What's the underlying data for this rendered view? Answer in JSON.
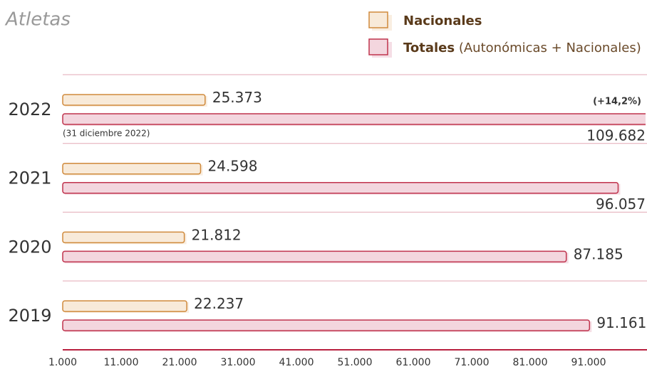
{
  "chart_data": {
    "type": "barh",
    "title": "Atletas",
    "categories": [
      "2022",
      "2021",
      "2020",
      "2019"
    ],
    "series": [
      {
        "name": "Nacionales",
        "color": "#d08a3c",
        "fill": "#f8ead9",
        "values": [
          25373,
          24598,
          21812,
          22237
        ],
        "value_labels": [
          "25.373",
          "24.598",
          "21.812",
          "22.237"
        ]
      },
      {
        "name": "Totales",
        "name_detail": "(Autonómicas + Nacionales)",
        "color": "#c0334d",
        "fill": "#f3d6de",
        "values": [
          109682,
          96057,
          87185,
          91161
        ],
        "value_labels": [
          "109.682",
          "96.057",
          "87.185",
          "91.161"
        ]
      }
    ],
    "annotations": [
      "(+14,2%)",
      "(31 diciembre 2022)"
    ],
    "xlim": [
      1000,
      101000
    ],
    "xticks": [
      {
        "value": 1000,
        "label": "1.000"
      },
      {
        "value": 11000,
        "label": "11.000"
      },
      {
        "value": 21000,
        "label": "21.000"
      },
      {
        "value": 31000,
        "label": "31.000"
      },
      {
        "value": 41000,
        "label": "41.000"
      },
      {
        "value": 51000,
        "label": "51.000"
      },
      {
        "value": 61000,
        "label": "61.000"
      },
      {
        "value": 71000,
        "label": "71.000"
      },
      {
        "value": 81000,
        "label": "81.000"
      },
      {
        "value": 91000,
        "label": "91.000"
      }
    ]
  }
}
